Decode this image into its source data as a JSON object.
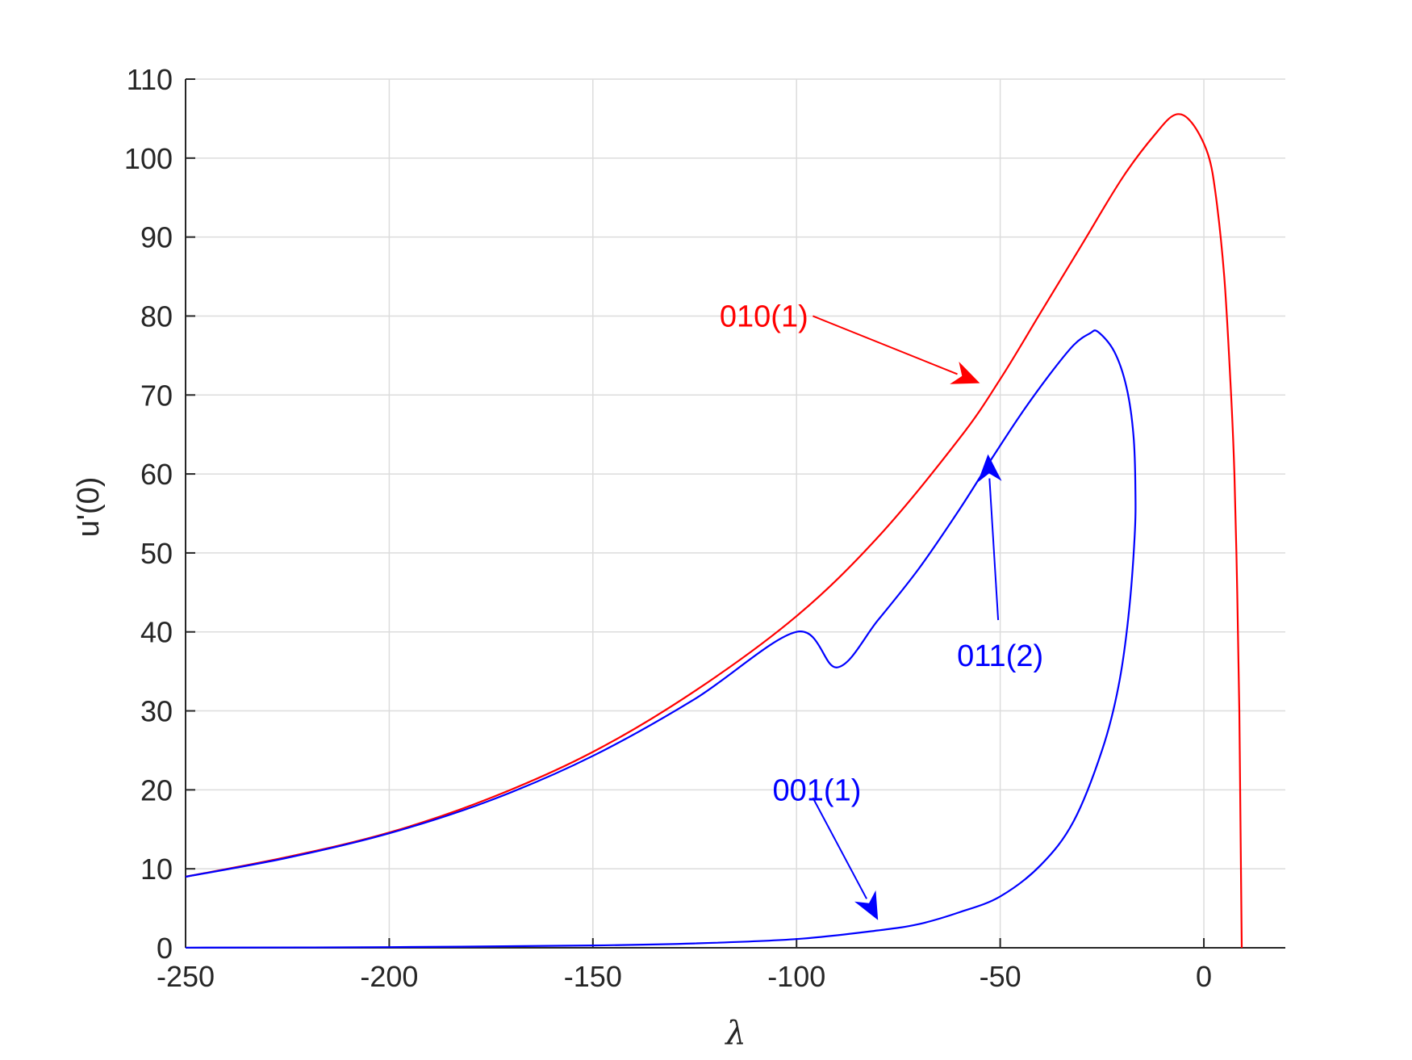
{
  "chart_data": {
    "type": "line",
    "title": "",
    "xlabel": "λ",
    "ylabel": "u'(0)",
    "xlim": [
      -250,
      20
    ],
    "ylim": [
      0,
      110
    ],
    "xticks": [
      -250,
      -200,
      -150,
      -100,
      -50,
      0
    ],
    "yticks": [
      0,
      10,
      20,
      30,
      40,
      50,
      60,
      70,
      80,
      90,
      100,
      110
    ],
    "xtick_labels": [
      "-250",
      "-200",
      "-150",
      "-100",
      "-50",
      "0"
    ],
    "ytick_labels": [
      "0",
      "10",
      "20",
      "30",
      "40",
      "50",
      "60",
      "70",
      "80",
      "90",
      "100",
      "110"
    ],
    "grid": true,
    "series": [
      {
        "color": "#ff0000",
        "points": [
          [
            -250,
            9
          ],
          [
            -225,
            11.5
          ],
          [
            -200,
            14.6
          ],
          [
            -175,
            19
          ],
          [
            -150,
            24.8
          ],
          [
            -125,
            32.5
          ],
          [
            -100,
            42
          ],
          [
            -80,
            52
          ],
          [
            -60,
            64.5
          ],
          [
            -50,
            72
          ],
          [
            -40,
            80.5
          ],
          [
            -30,
            89
          ],
          [
            -20,
            97.5
          ],
          [
            -12,
            103
          ],
          [
            -7,
            105.5
          ],
          [
            -3,
            104.5
          ],
          [
            1,
            100.5
          ],
          [
            3,
            95
          ],
          [
            5,
            85
          ],
          [
            6.5,
            72
          ],
          [
            7.5,
            60
          ],
          [
            8.2,
            45
          ],
          [
            8.7,
            30
          ],
          [
            9,
            15
          ],
          [
            9.2,
            5
          ],
          [
            9.3,
            0
          ]
        ]
      },
      {
        "color": "#0000ff",
        "points": [
          [
            -250,
            0.02
          ],
          [
            -200,
            0.08
          ],
          [
            -150,
            0.3
          ],
          [
            -125,
            0.55
          ],
          [
            -100,
            1.1
          ],
          [
            -80,
            2.2
          ],
          [
            -70,
            3
          ],
          [
            -60,
            4.5
          ],
          [
            -50,
            6.5
          ],
          [
            -40,
            10.5
          ],
          [
            -32,
            16
          ],
          [
            -25,
            25
          ],
          [
            -21,
            33
          ],
          [
            -18.5,
            42
          ],
          [
            -17,
            52
          ],
          [
            -16.8,
            58
          ],
          [
            -17.3,
            65
          ],
          [
            -19,
            71
          ],
          [
            -22,
            75.5
          ],
          [
            -26,
            78
          ],
          [
            -28,
            77.8
          ],
          [
            -32,
            76.3
          ],
          [
            -38,
            72.5
          ],
          [
            -45,
            67.5
          ],
          [
            -52,
            62
          ],
          [
            -60,
            55.5
          ],
          [
            -70,
            48
          ],
          [
            -80,
            41.5
          ],
          [
            -90,
            35.5
          ],
          [
            -100,
            40
          ],
          [
            -125,
            31.5
          ],
          [
            -150,
            24.3
          ],
          [
            -175,
            18.7
          ],
          [
            -200,
            14.5
          ],
          [
            -225,
            11.4
          ],
          [
            -250,
            9
          ]
        ]
      }
    ],
    "annotations": [
      {
        "text": "010(1)",
        "color": "#ff0000",
        "text_at": [
          -108,
          80
        ],
        "arrow_from": [
          -96,
          80
        ],
        "arrow_to": [
          -55,
          71.5
        ]
      },
      {
        "text": "011(2)",
        "color": "#0000ff",
        "text_at": [
          -50,
          37
        ],
        "arrow_from": [
          -50.5,
          41.5
        ],
        "arrow_to": [
          -53,
          62.5
        ]
      },
      {
        "text": "001(1)",
        "color": "#0000ff",
        "text_at": [
          -95,
          20
        ],
        "arrow_from": [
          -96,
          19
        ],
        "arrow_to": [
          -80,
          3.5
        ]
      }
    ]
  }
}
